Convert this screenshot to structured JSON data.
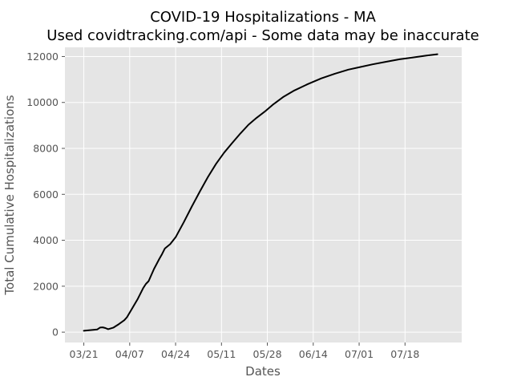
{
  "chart_data": {
    "type": "line",
    "title": "COVID-19 Hospitalizations - MA",
    "subtitle": "Used covidtracking.com/api - Some data may be inaccurate",
    "xlabel": "Dates",
    "ylabel": "Total Cumulative Hospitalizations",
    "x_ticks": [
      "03/21",
      "04/07",
      "04/24",
      "05/11",
      "05/28",
      "06/14",
      "07/01",
      "07/18"
    ],
    "y_ticks": [
      "0",
      "2000",
      "4000",
      "6000",
      "8000",
      "10000",
      "12000"
    ],
    "ylim": [
      -450,
      12400
    ],
    "xlim": [
      "2020-03-14",
      "2020-08-08"
    ],
    "grid": true,
    "background": "#e5e5e5",
    "line_color": "#000000",
    "series": [
      {
        "x": [
          "2020-03-21",
          "2020-03-26",
          "2020-03-27",
          "2020-03-28",
          "2020-03-29",
          "2020-03-30",
          "2020-04-01",
          "2020-04-03",
          "2020-04-05",
          "2020-04-06",
          "2020-04-08",
          "2020-04-10",
          "2020-04-12",
          "2020-04-13",
          "2020-04-14",
          "2020-04-16",
          "2020-04-18",
          "2020-04-19",
          "2020-04-20",
          "2020-04-22",
          "2020-04-24",
          "2020-04-27",
          "2020-04-30",
          "2020-05-03",
          "2020-05-06",
          "2020-05-09",
          "2020-05-12",
          "2020-05-15",
          "2020-05-18",
          "2020-05-21",
          "2020-05-24",
          "2020-05-27",
          "2020-05-30",
          "2020-06-03",
          "2020-06-07",
          "2020-06-12",
          "2020-06-17",
          "2020-06-22",
          "2020-06-27",
          "2020-07-01",
          "2020-07-06",
          "2020-07-11",
          "2020-07-16",
          "2020-07-21",
          "2020-07-26",
          "2020-07-30"
        ],
        "y": [
          60,
          120,
          200,
          210,
          180,
          130,
          200,
          350,
          520,
          650,
          1050,
          1450,
          1920,
          2100,
          2220,
          2750,
          3200,
          3400,
          3640,
          3830,
          4130,
          4780,
          5470,
          6130,
          6760,
          7330,
          7820,
          8240,
          8650,
          9030,
          9330,
          9600,
          9900,
          10250,
          10520,
          10800,
          11050,
          11250,
          11430,
          11530,
          11660,
          11770,
          11880,
          11960,
          12040,
          12100
        ]
      }
    ]
  }
}
